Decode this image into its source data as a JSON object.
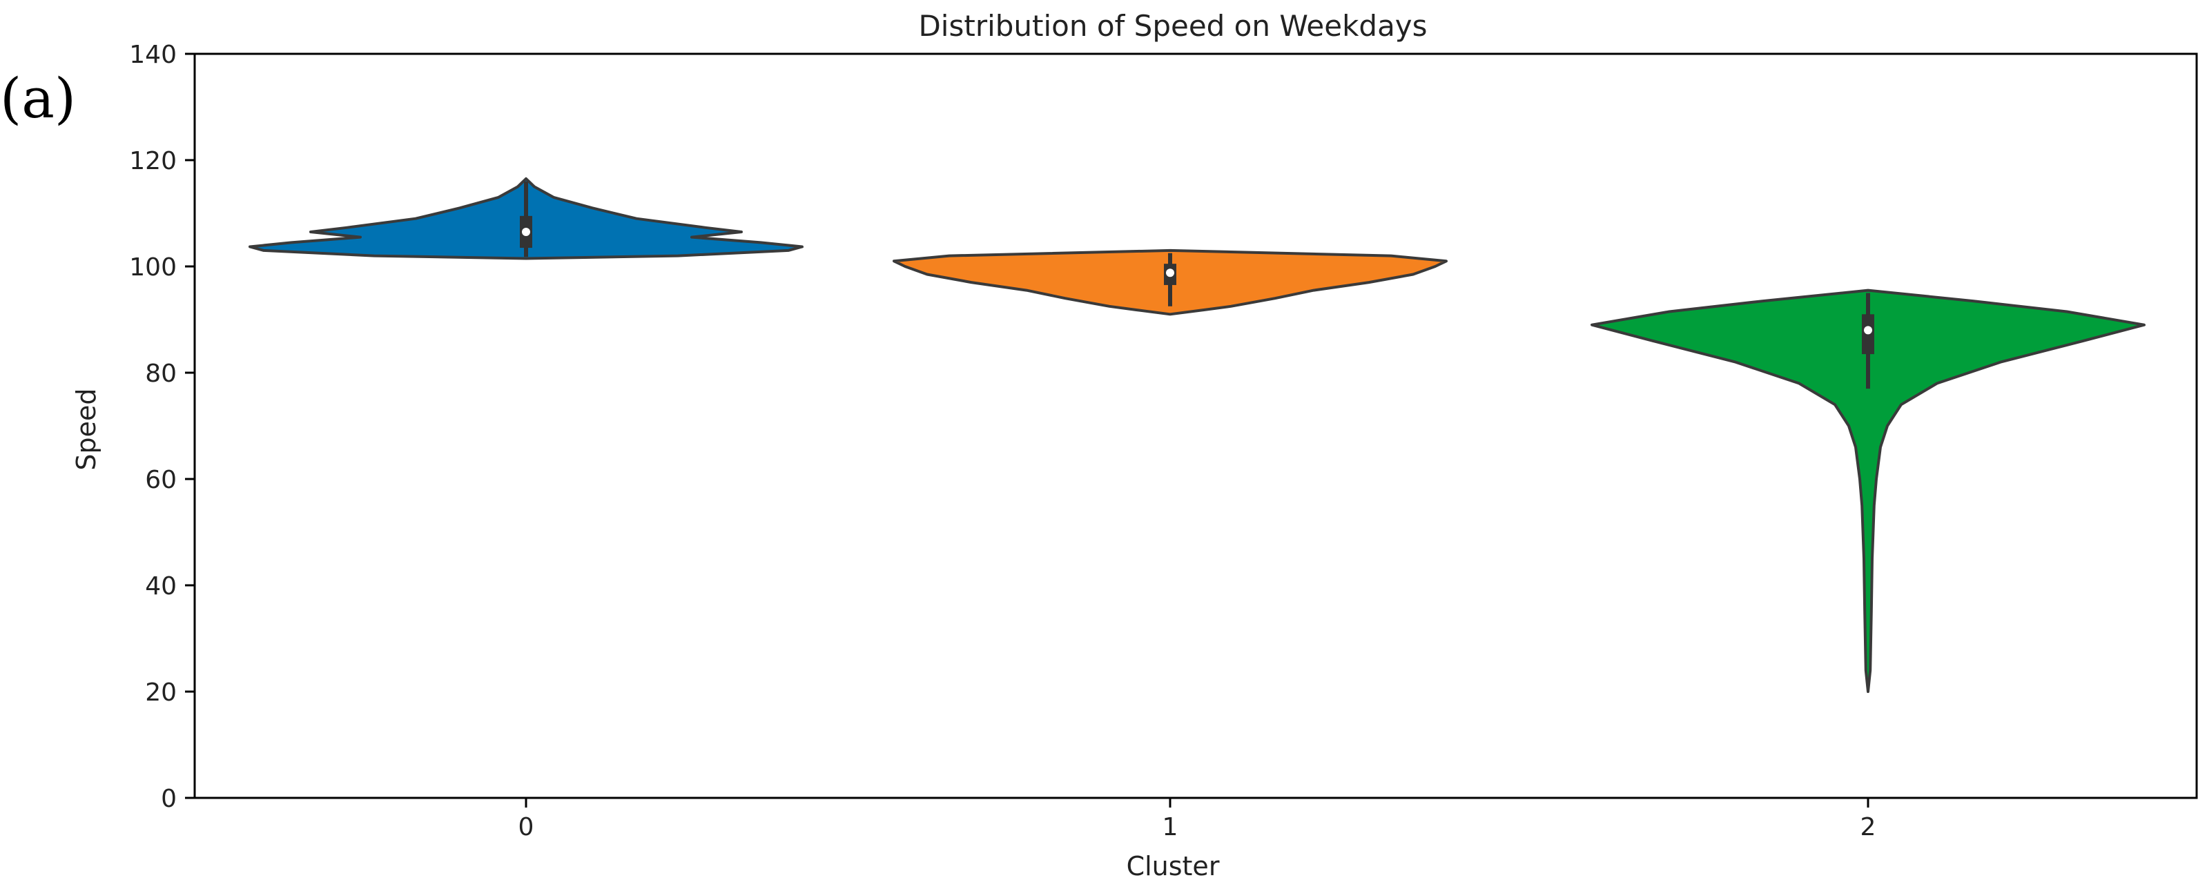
{
  "chart_data": {
    "type": "violin",
    "title": "Distribution of Speed on Weekdays",
    "panel_label": "(a)",
    "xlabel": "Cluster",
    "ylabel": "Speed",
    "ylim": [
      0,
      140
    ],
    "yticks": [
      0,
      20,
      40,
      60,
      80,
      100,
      120,
      140
    ],
    "ytick_labels": [
      "0",
      "20",
      "40",
      "60",
      "80",
      "100",
      "120",
      "140"
    ],
    "categories": [
      "0",
      "1",
      "2"
    ],
    "grid": false,
    "legend": "none",
    "series": [
      {
        "category": "0",
        "color": "#0072B2",
        "min": 101.5,
        "max": 116.5,
        "q1": 103.5,
        "median": 106.5,
        "q3": 109.5,
        "whisker_low": 101.8,
        "whisker_high": 116.0,
        "density": [
          [
            101.5,
            0.0
          ],
          [
            102.0,
            0.55
          ],
          [
            103.0,
            0.95
          ],
          [
            103.7,
            1.0
          ],
          [
            104.5,
            0.85
          ],
          [
            105.5,
            0.6
          ],
          [
            106.5,
            0.78
          ],
          [
            107.3,
            0.65
          ],
          [
            109.0,
            0.4
          ],
          [
            111.0,
            0.24
          ],
          [
            113.0,
            0.1
          ],
          [
            115.0,
            0.03
          ],
          [
            116.5,
            0.0
          ]
        ]
      },
      {
        "category": "1",
        "color": "#F5821F",
        "min": 91.0,
        "max": 103.0,
        "q1": 96.5,
        "median": 98.8,
        "q3": 100.5,
        "whisker_low": 92.5,
        "whisker_high": 102.5,
        "density": [
          [
            91.0,
            0.0
          ],
          [
            91.8,
            0.12
          ],
          [
            92.5,
            0.22
          ],
          [
            94.0,
            0.38
          ],
          [
            95.5,
            0.52
          ],
          [
            97.0,
            0.72
          ],
          [
            98.5,
            0.88
          ],
          [
            100.0,
            0.96
          ],
          [
            101.0,
            1.0
          ],
          [
            102.0,
            0.8
          ],
          [
            103.0,
            0.0
          ]
        ]
      },
      {
        "category": "2",
        "color": "#009E3A",
        "min": 20.0,
        "max": 95.5,
        "q1": 83.5,
        "median": 88.0,
        "q3": 91.0,
        "whisker_low": 77.0,
        "whisker_high": 95.0,
        "density": [
          [
            20.0,
            0.0
          ],
          [
            24.0,
            0.008
          ],
          [
            35.0,
            0.012
          ],
          [
            45.0,
            0.015
          ],
          [
            55.0,
            0.022
          ],
          [
            60.0,
            0.03
          ],
          [
            66.0,
            0.045
          ],
          [
            70.0,
            0.07
          ],
          [
            74.0,
            0.12
          ],
          [
            78.0,
            0.25
          ],
          [
            82.0,
            0.48
          ],
          [
            86.0,
            0.78
          ],
          [
            89.0,
            1.0
          ],
          [
            91.5,
            0.72
          ],
          [
            93.5,
            0.38
          ],
          [
            95.5,
            0.0
          ]
        ]
      }
    ]
  }
}
